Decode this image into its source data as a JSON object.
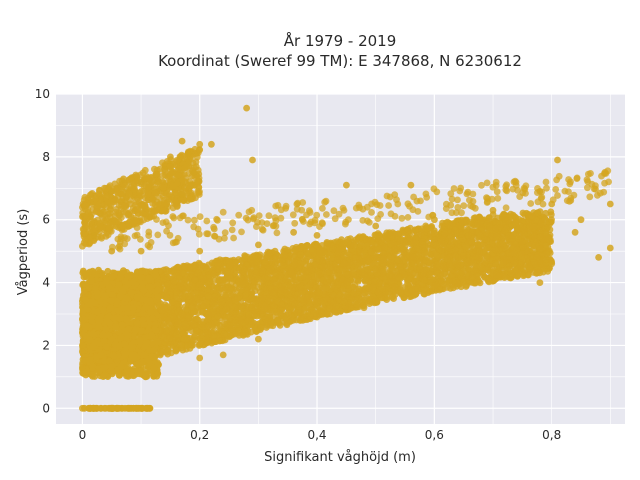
{
  "chart_data": {
    "type": "scatter",
    "title_lines": [
      "År 1979 - 2019",
      "Koordinat (Sweref 99 TM): E 347868, N 6230612"
    ],
    "xlabel": "Signifikant våghöjd (m)",
    "ylabel": "Vågperiod (s)",
    "xlim": [
      -0.045,
      0.925
    ],
    "ylim": [
      -0.5,
      10
    ],
    "xticks": [
      0,
      0.2,
      0.4,
      0.6,
      0.8
    ],
    "xtick_labels": [
      "0",
      "0,2",
      "0,4",
      "0,6",
      "0,8"
    ],
    "yticks": [
      0,
      2,
      4,
      6,
      8,
      10
    ],
    "ytick_labels": [
      "0",
      "2",
      "4",
      "6",
      "8",
      "10"
    ],
    "grid": true,
    "background": "#e8e8f0",
    "marker_color": "#d4a520",
    "point_groups": [
      {
        "description": "zero-period row",
        "x_range": [
          0,
          0.115
        ],
        "y_center": 0,
        "y_spread": 0
      },
      {
        "description": "main band",
        "x_range": [
          0,
          0.82
        ],
        "y_low_at_x0": 1.0,
        "y_high_at_x0": 4.0,
        "slope_low": 5.0,
        "slope_high": 3.0
      },
      {
        "description": "high-period cluster",
        "x_range": [
          0,
          0.22
        ],
        "y_range": [
          5.5,
          8.8
        ]
      }
    ],
    "sample_points": [
      {
        "x": 0.0,
        "y": 0
      },
      {
        "x": 0.02,
        "y": 0
      },
      {
        "x": 0.04,
        "y": 0
      },
      {
        "x": 0.06,
        "y": 0
      },
      {
        "x": 0.08,
        "y": 0
      },
      {
        "x": 0.1,
        "y": 0
      },
      {
        "x": 0.115,
        "y": 0
      },
      {
        "x": 0.0,
        "y": 1.3
      },
      {
        "x": 0.0,
        "y": 2.0
      },
      {
        "x": 0.0,
        "y": 1.8
      },
      {
        "x": 0.01,
        "y": 3.6
      },
      {
        "x": 0.02,
        "y": 5.5
      },
      {
        "x": 0.03,
        "y": 6.2
      },
      {
        "x": 0.05,
        "y": 6.9
      },
      {
        "x": 0.07,
        "y": 7.3
      },
      {
        "x": 0.1,
        "y": 7.2
      },
      {
        "x": 0.14,
        "y": 7.6
      },
      {
        "x": 0.15,
        "y": 8.0
      },
      {
        "x": 0.17,
        "y": 8.5
      },
      {
        "x": 0.18,
        "y": 8.1
      },
      {
        "x": 0.2,
        "y": 8.4
      },
      {
        "x": 0.22,
        "y": 8.4
      },
      {
        "x": 0.19,
        "y": 7.5
      },
      {
        "x": 0.17,
        "y": 6.8
      },
      {
        "x": 0.28,
        "y": 9.55
      },
      {
        "x": 0.29,
        "y": 7.9
      },
      {
        "x": 0.05,
        "y": 5.0
      },
      {
        "x": 0.1,
        "y": 5.0
      },
      {
        "x": 0.2,
        "y": 5.0
      },
      {
        "x": 0.3,
        "y": 5.2
      },
      {
        "x": 0.4,
        "y": 5.5
      },
      {
        "x": 0.5,
        "y": 5.8
      },
      {
        "x": 0.6,
        "y": 6.0
      },
      {
        "x": 0.7,
        "y": 6.3
      },
      {
        "x": 0.8,
        "y": 6.5
      },
      {
        "x": 0.2,
        "y": 1.6
      },
      {
        "x": 0.3,
        "y": 2.2
      },
      {
        "x": 0.4,
        "y": 2.9
      },
      {
        "x": 0.5,
        "y": 3.4
      },
      {
        "x": 0.6,
        "y": 3.9
      },
      {
        "x": 0.7,
        "y": 4.3
      },
      {
        "x": 0.8,
        "y": 4.6
      },
      {
        "x": 0.81,
        "y": 7.9
      },
      {
        "x": 0.85,
        "y": 6.0
      },
      {
        "x": 0.9,
        "y": 6.5
      },
      {
        "x": 0.9,
        "y": 5.1
      },
      {
        "x": 0.88,
        "y": 4.8
      },
      {
        "x": 0.84,
        "y": 5.6
      },
      {
        "x": 0.78,
        "y": 6.9
      },
      {
        "x": 0.75,
        "y": 5.3
      },
      {
        "x": 0.45,
        "y": 7.1
      },
      {
        "x": 0.56,
        "y": 7.1
      },
      {
        "x": 0.78,
        "y": 4.0
      },
      {
        "x": 0.48,
        "y": 3.2
      },
      {
        "x": 0.36,
        "y": 5.6
      },
      {
        "x": 0.24,
        "y": 1.7
      }
    ]
  }
}
